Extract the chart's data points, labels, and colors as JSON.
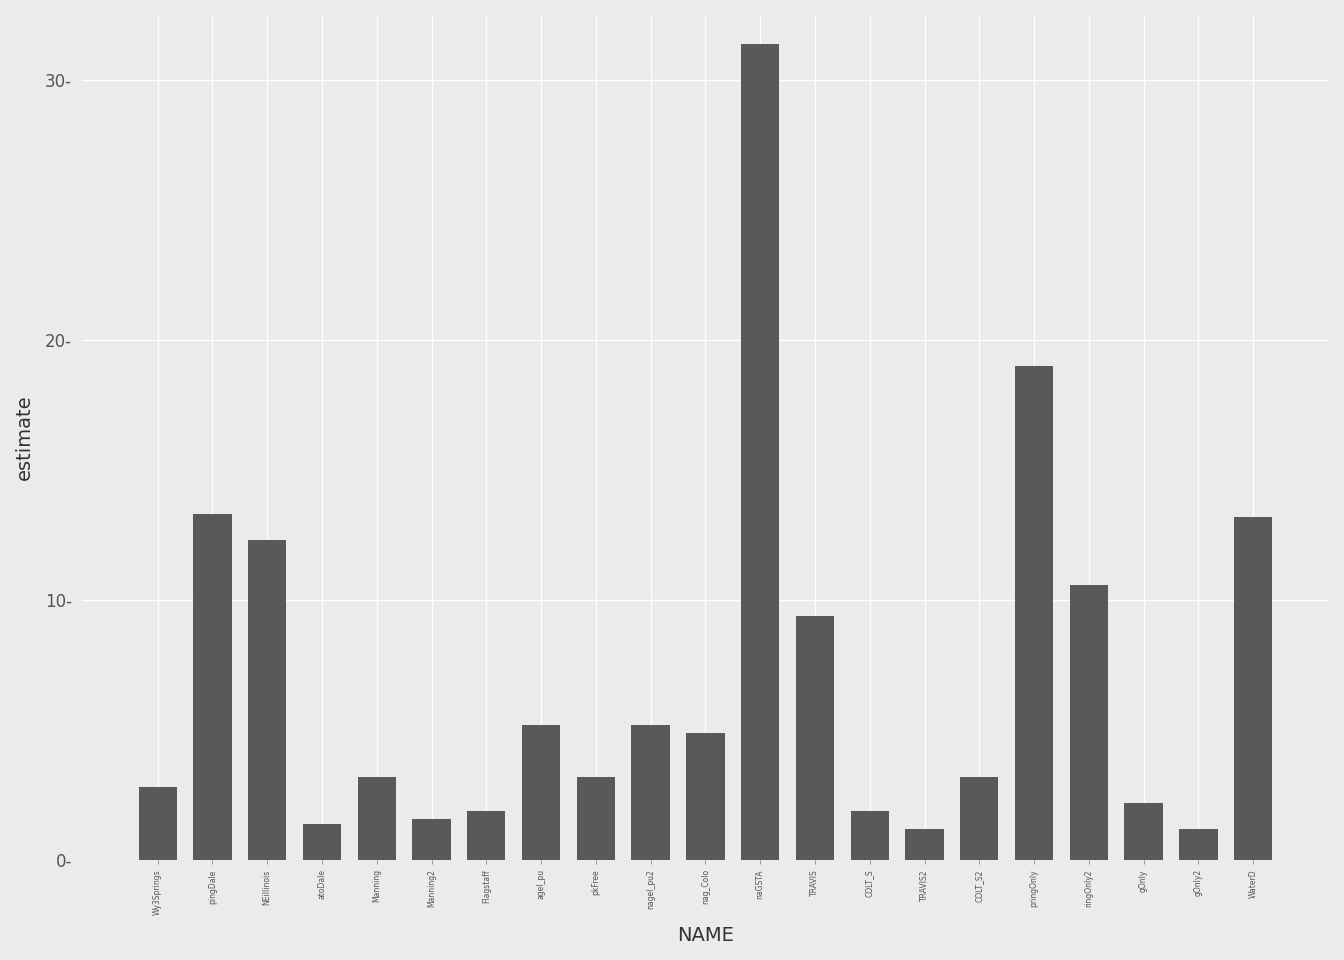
{
  "categories": [
    "Wy3Springs",
    "pingDale",
    "NEillinois",
    "atoDale",
    "Manning",
    "Manning2",
    "Flagstaff",
    "agel_pu",
    "pkFree",
    "nagel_pu2",
    "nag_Colo",
    "naGSTA",
    "TRAVIS",
    "COLT_S",
    "TRAVIS2",
    "COLT_S2",
    "pringOnly",
    "ringOnly2",
    "gOnly",
    "gOnly2",
    "WaterD"
  ],
  "values": [
    2.8,
    13.3,
    12.3,
    1.4,
    3.2,
    1.6,
    1.9,
    5.2,
    3.2,
    5.2,
    4.9,
    31.4,
    9.4,
    1.9,
    1.2,
    3.2,
    19.0,
    10.6,
    2.2,
    1.2,
    13.2
  ],
  "bar_color": "#595959",
  "background_color": "#ebebeb",
  "grid_color": "#ffffff",
  "xlabel": "NAME",
  "ylabel": "estimate",
  "ylim_min": 0,
  "ylim_max": 32,
  "yticks": [
    0,
    10,
    20,
    30
  ],
  "ytick_labels": [
    "0-",
    "10-",
    "20-",
    "30-"
  ]
}
